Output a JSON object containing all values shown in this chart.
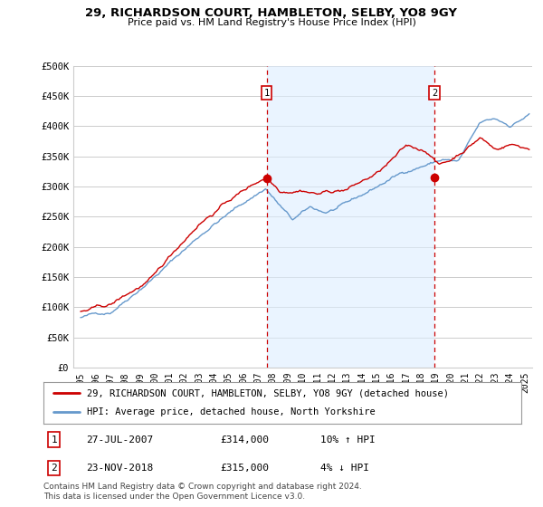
{
  "title_line1": "29, RICHARDSON COURT, HAMBLETON, SELBY, YO8 9GY",
  "title_line2": "Price paid vs. HM Land Registry's House Price Index (HPI)",
  "ylabel_ticks": [
    "£0",
    "£50K",
    "£100K",
    "£150K",
    "£200K",
    "£250K",
    "£300K",
    "£350K",
    "£400K",
    "£450K",
    "£500K"
  ],
  "ytick_values": [
    0,
    50000,
    100000,
    150000,
    200000,
    250000,
    300000,
    350000,
    400000,
    450000,
    500000
  ],
  "ylim": [
    0,
    500000
  ],
  "xlim_start": 1994.5,
  "xlim_end": 2025.5,
  "sale1_x": 2007.56,
  "sale1_y": 314000,
  "sale1_label": "1",
  "sale1_date": "27-JUL-2007",
  "sale1_price": "£314,000",
  "sale1_hpi": "10% ↑ HPI",
  "sale2_x": 2018.9,
  "sale2_y": 315000,
  "sale2_label": "2",
  "sale2_date": "23-NOV-2018",
  "sale2_price": "£315,000",
  "sale2_hpi": "4% ↓ HPI",
  "red_line_color": "#cc0000",
  "blue_line_color": "#6699cc",
  "shade_color": "#ddeeff",
  "annotation_color": "#cc0000",
  "background_color": "#ffffff",
  "grid_color": "#cccccc",
  "legend_label_red": "29, RICHARDSON COURT, HAMBLETON, SELBY, YO8 9GY (detached house)",
  "legend_label_blue": "HPI: Average price, detached house, North Yorkshire",
  "footnote": "Contains HM Land Registry data © Crown copyright and database right 2024.\nThis data is licensed under the Open Government Licence v3.0.",
  "xtick_years": [
    1995,
    1996,
    1997,
    1998,
    1999,
    2000,
    2001,
    2002,
    2003,
    2004,
    2005,
    2006,
    2007,
    2008,
    2009,
    2010,
    2011,
    2012,
    2013,
    2014,
    2015,
    2016,
    2017,
    2018,
    2019,
    2020,
    2021,
    2022,
    2023,
    2024,
    2025
  ]
}
